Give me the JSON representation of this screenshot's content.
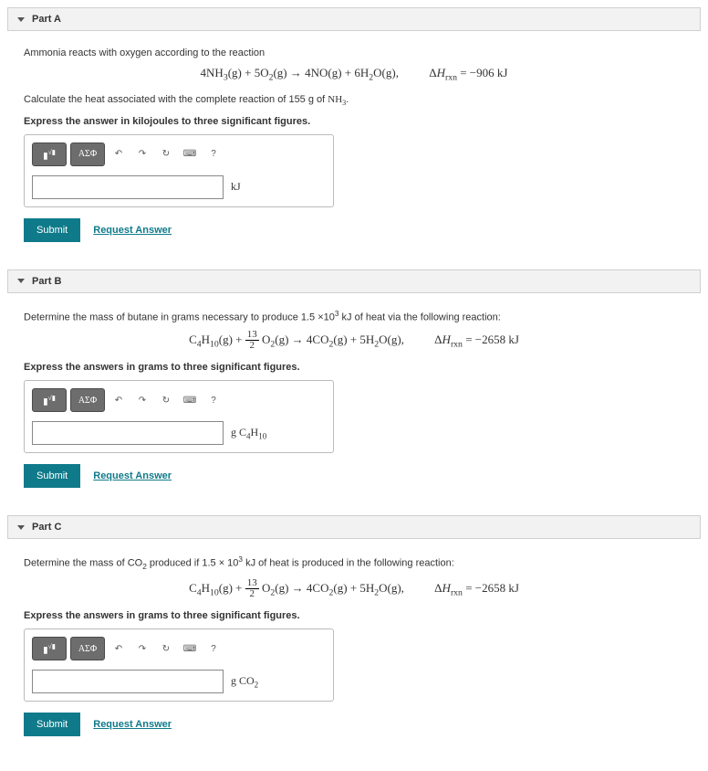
{
  "parts": {
    "a": {
      "title": "Part A",
      "line1": "Ammonia reacts with oxygen according to the reaction",
      "line2_prefix": "Calculate the heat associated with the complete reaction of 155 g of ",
      "line2_suffix": ".",
      "equation_html": "4NH<sub>3</sub>(g) + 5O<sub>2</sub>(g) → 4NO(g) + 6H<sub>2</sub>O(g),",
      "dh_html": "Δ<i>H</i><sub>rxn</sub> = −906 kJ",
      "instr": "Express the answer in kilojoules to three significant figures.",
      "unit_html": "kJ"
    },
    "b": {
      "title": "Part B",
      "line1_html": "Determine the mass of butane in grams necessary to produce 1.5 ×10<sup>3</sup> kJ of heat via the following reaction:",
      "equation_html": "C<sub>4</sub>H<sub>10</sub>(g) + <span class=\"frac\"><span class=\"n\">13</span><span class=\"d\">2</span></span> O<sub>2</sub>(g) → 4CO<sub>2</sub>(g) + 5H<sub>2</sub>O(g),",
      "dh_html": "Δ<i>H</i><sub>rxn</sub> = −2658 kJ",
      "instr": "Express the answers in grams to three significant figures.",
      "unit_html": "g C<sub>4</sub>H<sub>10</sub>"
    },
    "c": {
      "title": "Part C",
      "line1_html": "Determine the mass of CO<sub>2</sub> produced if 1.5 × 10<sup>3</sup> kJ of heat is produced in the following reaction:",
      "equation_html": "C<sub>4</sub>H<sub>10</sub>(g) + <span class=\"frac\"><span class=\"n\">13</span><span class=\"d\">2</span></span> O<sub>2</sub>(g) → 4CO<sub>2</sub>(g) + 5H<sub>2</sub>O(g),",
      "dh_html": "Δ<i>H</i><sub>rxn</sub> = −2658 kJ",
      "instr": "Express the answers in grams to three significant figures.",
      "unit_html": "g CO<sub>2</sub>"
    }
  },
  "toolbar": {
    "math_btn": "√",
    "greek_btn": "ΑΣΦ",
    "undo": "↶",
    "redo": "↷",
    "reset": "↻",
    "keyboard": "⌨",
    "help": "?"
  },
  "actions": {
    "submit": "Submit",
    "request": "Request Answer"
  },
  "colors": {
    "header_bg": "#f2f2f2",
    "submit_bg": "#0f7a8a",
    "link": "#0f7a8a",
    "tool_bg": "#6d6d6d"
  }
}
